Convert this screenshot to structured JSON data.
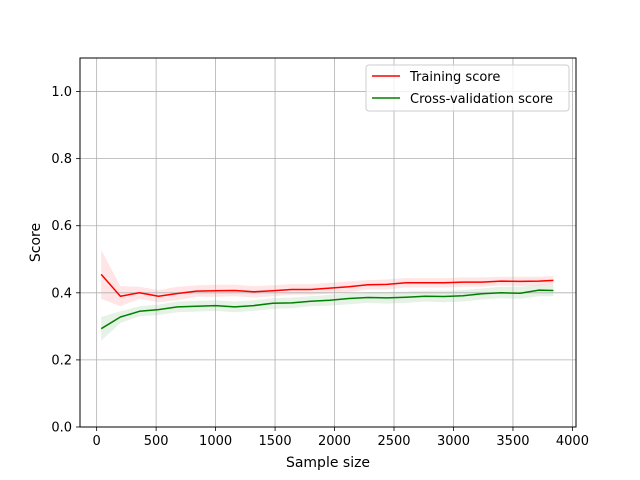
{
  "chart_data": {
    "type": "line",
    "title": "",
    "xlabel": "Sample size",
    "ylabel": "Score",
    "xlim": [
      -140,
      4030
    ],
    "ylim": [
      0.0,
      1.1
    ],
    "xticks": [
      0,
      500,
      1000,
      1500,
      2000,
      2500,
      3000,
      3500,
      4000
    ],
    "yticks": [
      0.0,
      0.2,
      0.4,
      0.6,
      0.8,
      1.0
    ],
    "grid": true,
    "legend_position": "upper right",
    "x": [
      38,
      200,
      360,
      520,
      680,
      840,
      1000,
      1160,
      1320,
      1480,
      1640,
      1800,
      1960,
      2120,
      2280,
      2440,
      2600,
      2760,
      2920,
      3080,
      3240,
      3400,
      3560,
      3720,
      3840
    ],
    "series": [
      {
        "name": "Training score",
        "color": "#ff0000",
        "fill_color": "#ff0000",
        "values": [
          0.455,
          0.39,
          0.4,
          0.39,
          0.398,
          0.405,
          0.406,
          0.407,
          0.403,
          0.406,
          0.41,
          0.41,
          0.414,
          0.418,
          0.424,
          0.425,
          0.43,
          0.43,
          0.43,
          0.432,
          0.432,
          0.435,
          0.434,
          0.435,
          0.437
        ],
        "upper": [
          0.528,
          0.42,
          0.418,
          0.408,
          0.418,
          0.422,
          0.424,
          0.424,
          0.42,
          0.422,
          0.426,
          0.426,
          0.43,
          0.434,
          0.438,
          0.44,
          0.444,
          0.444,
          0.444,
          0.446,
          0.446,
          0.448,
          0.448,
          0.448,
          0.45
        ],
        "lower": [
          0.382,
          0.36,
          0.382,
          0.372,
          0.378,
          0.388,
          0.388,
          0.39,
          0.386,
          0.39,
          0.394,
          0.394,
          0.398,
          0.402,
          0.41,
          0.41,
          0.416,
          0.416,
          0.416,
          0.418,
          0.418,
          0.422,
          0.42,
          0.422,
          0.424
        ]
      },
      {
        "name": "Cross-validation score",
        "color": "#008000",
        "fill_color": "#008000",
        "values": [
          0.293,
          0.328,
          0.345,
          0.35,
          0.358,
          0.36,
          0.362,
          0.358,
          0.362,
          0.369,
          0.37,
          0.375,
          0.378,
          0.383,
          0.386,
          0.385,
          0.387,
          0.39,
          0.389,
          0.391,
          0.397,
          0.4,
          0.399,
          0.408,
          0.407
        ],
        "upper": [
          0.328,
          0.345,
          0.36,
          0.365,
          0.374,
          0.376,
          0.378,
          0.374,
          0.378,
          0.384,
          0.386,
          0.39,
          0.394,
          0.398,
          0.402,
          0.402,
          0.404,
          0.406,
          0.406,
          0.408,
          0.413,
          0.418,
          0.418,
          0.424,
          0.424
        ],
        "lower": [
          0.258,
          0.31,
          0.33,
          0.334,
          0.342,
          0.344,
          0.346,
          0.342,
          0.346,
          0.352,
          0.354,
          0.36,
          0.362,
          0.366,
          0.37,
          0.368,
          0.37,
          0.374,
          0.372,
          0.374,
          0.38,
          0.384,
          0.382,
          0.39,
          0.39
        ]
      }
    ]
  }
}
